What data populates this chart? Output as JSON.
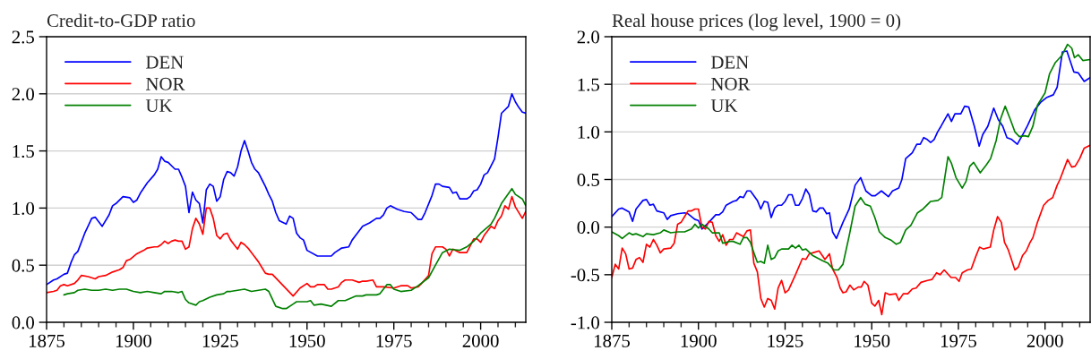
{
  "chart_data": [
    {
      "type": "line",
      "title": "Credit-to-GDP ratio",
      "xlim": [
        1875,
        2013
      ],
      "ylim": [
        0,
        2.5
      ],
      "xticks": [
        1875,
        {
          "value": 1880,
          "label": null
        },
        {
          "value": 1885,
          "label": null
        },
        {
          "value": 1890,
          "label": null
        },
        {
          "value": 1895,
          "label": null
        },
        1900,
        {
          "value": 1905,
          "label": null
        },
        {
          "value": 1910,
          "label": null
        },
        {
          "value": 1915,
          "label": null
        },
        {
          "value": 1920,
          "label": null
        },
        1925,
        {
          "value": 1930,
          "label": null
        },
        {
          "value": 1935,
          "label": null
        },
        {
          "value": 1940,
          "label": null
        },
        {
          "value": 1945,
          "label": null
        },
        1950,
        {
          "value": 1955,
          "label": null
        },
        {
          "value": 1960,
          "label": null
        },
        {
          "value": 1965,
          "label": null
        },
        {
          "value": 1970,
          "label": null
        },
        1975,
        {
          "value": 1980,
          "label": null
        },
        {
          "value": 1985,
          "label": null
        },
        {
          "value": 1990,
          "label": null
        },
        {
          "value": 1995,
          "label": null
        },
        2000,
        {
          "value": 2005,
          "label": null
        },
        {
          "value": 2010,
          "label": null
        }
      ],
      "yticks": [
        {
          "value": 0,
          "label": "0.0"
        },
        0.5,
        {
          "value": 1,
          "label": "1.0"
        },
        1.5,
        {
          "value": 2,
          "label": "2.0"
        },
        2.5
      ],
      "grid": "y",
      "legend": "top left",
      "series": [
        {
          "name": "DEN",
          "color": "#0000ff",
          "x": [
            1875,
            1877,
            1878,
            1880,
            1881,
            1882,
            1883,
            1884,
            1886,
            1888,
            1889,
            1891,
            1893,
            1894,
            1895,
            1897,
            1899,
            1900,
            1901,
            1902,
            1904,
            1906,
            1907,
            1908,
            1909,
            1910,
            1912,
            1913,
            1914,
            1915,
            1916,
            1917,
            1918,
            1919,
            1920,
            1921,
            1922,
            1923,
            1924,
            1925,
            1926,
            1927,
            1928,
            1929,
            1930,
            1931,
            1932,
            1933,
            1934,
            1935,
            1936,
            1937,
            1938,
            1939,
            1940,
            1941,
            1942,
            1944,
            1945,
            1946,
            1947,
            1948,
            1949,
            1950,
            1953,
            1955,
            1957,
            1958,
            1960,
            1962,
            1963,
            1964,
            1966,
            1968,
            1970,
            1971,
            1972,
            1973,
            1974,
            1976,
            1978,
            1980,
            1982,
            1983,
            1984,
            1986,
            1987,
            1988,
            1989,
            1991,
            1992,
            1993,
            1994,
            1996,
            1997,
            1998,
            1999,
            2000,
            2001,
            2002,
            2004,
            2005,
            2006,
            2008,
            2009,
            2010,
            2011,
            2012,
            2013
          ],
          "values": [
            0.33,
            0.37,
            0.38,
            0.42,
            0.43,
            0.52,
            0.59,
            0.62,
            0.78,
            0.91,
            0.92,
            0.84,
            0.94,
            1.02,
            1.04,
            1.1,
            1.09,
            1.05,
            1.07,
            1.13,
            1.22,
            1.29,
            1.34,
            1.45,
            1.41,
            1.4,
            1.34,
            1.34,
            1.27,
            1.19,
            0.96,
            1.14,
            1.07,
            1.04,
            0.87,
            1.16,
            1.21,
            1.19,
            1.06,
            1.1,
            1.25,
            1.32,
            1.31,
            1.28,
            1.36,
            1.5,
            1.59,
            1.5,
            1.4,
            1.34,
            1.31,
            1.25,
            1.19,
            1.12,
            1.06,
            0.96,
            0.89,
            0.86,
            0.93,
            0.91,
            0.78,
            0.74,
            0.72,
            0.63,
            0.58,
            0.58,
            0.58,
            0.61,
            0.65,
            0.66,
            0.72,
            0.76,
            0.84,
            0.87,
            0.91,
            0.91,
            0.94,
            1.0,
            1.02,
            0.99,
            0.97,
            0.96,
            0.9,
            0.9,
            0.96,
            1.11,
            1.21,
            1.21,
            1.19,
            1.18,
            1.13,
            1.14,
            1.08,
            1.08,
            1.1,
            1.15,
            1.16,
            1.21,
            1.29,
            1.31,
            1.43,
            1.62,
            1.83,
            1.89,
            2.0,
            1.93,
            1.88,
            1.84,
            1.83
          ]
        },
        {
          "name": "NOR",
          "color": "#ff0000",
          "x": [
            1875,
            1877,
            1878,
            1879,
            1880,
            1881,
            1883,
            1884,
            1885,
            1887,
            1889,
            1890,
            1892,
            1894,
            1896,
            1897,
            1898,
            1899,
            1901,
            1903,
            1904,
            1906,
            1907,
            1908,
            1909,
            1910,
            1911,
            1912,
            1913,
            1914,
            1915,
            1916,
            1917,
            1918,
            1919,
            1920,
            1921,
            1922,
            1923,
            1924,
            1925,
            1926,
            1927,
            1928,
            1929,
            1930,
            1931,
            1932,
            1933,
            1935,
            1936,
            1937,
            1938,
            1939,
            1940,
            1946,
            1948,
            1950,
            1951,
            1952,
            1953,
            1955,
            1956,
            1957,
            1959,
            1960,
            1961,
            1963,
            1965,
            1966,
            1967,
            1969,
            1970,
            1972,
            1975,
            1977,
            1979,
            1980,
            1982,
            1983,
            1985,
            1986,
            1987,
            1989,
            1990,
            1991,
            1992,
            1994,
            1996,
            1997,
            1998,
            1999,
            2000,
            2001,
            2003,
            2004,
            2005,
            2006,
            2007,
            2008,
            2009,
            2010,
            2012,
            2013
          ],
          "values": [
            0.26,
            0.27,
            0.28,
            0.32,
            0.33,
            0.32,
            0.34,
            0.37,
            0.41,
            0.4,
            0.38,
            0.4,
            0.41,
            0.44,
            0.46,
            0.48,
            0.54,
            0.55,
            0.6,
            0.63,
            0.65,
            0.66,
            0.66,
            0.68,
            0.71,
            0.69,
            0.71,
            0.72,
            0.71,
            0.71,
            0.64,
            0.66,
            0.82,
            0.91,
            0.86,
            0.77,
            1.0,
            1.0,
            0.91,
            0.76,
            0.73,
            0.77,
            0.78,
            0.72,
            0.68,
            0.64,
            0.7,
            0.68,
            0.65,
            0.57,
            0.53,
            0.48,
            0.43,
            0.42,
            0.42,
            0.23,
            0.3,
            0.34,
            0.31,
            0.31,
            0.33,
            0.33,
            0.29,
            0.29,
            0.31,
            0.35,
            0.37,
            0.37,
            0.35,
            0.36,
            0.36,
            0.37,
            0.31,
            0.31,
            0.3,
            0.32,
            0.32,
            0.3,
            0.31,
            0.34,
            0.41,
            0.6,
            0.66,
            0.66,
            0.64,
            0.58,
            0.64,
            0.61,
            0.61,
            0.67,
            0.73,
            0.73,
            0.7,
            0.76,
            0.84,
            0.82,
            0.89,
            0.93,
            1.02,
            0.99,
            1.1,
            1.01,
            0.91,
            0.97
          ]
        },
        {
          "name": "UK",
          "color": "#008000",
          "x": [
            1880,
            1881,
            1883,
            1884,
            1886,
            1888,
            1890,
            1892,
            1894,
            1896,
            1898,
            1900,
            1902,
            1904,
            1906,
            1908,
            1909,
            1911,
            1913,
            1914,
            1915,
            1916,
            1918,
            1919,
            1920,
            1922,
            1924,
            1926,
            1927,
            1928,
            1930,
            1932,
            1934,
            1936,
            1938,
            1939,
            1941,
            1943,
            1944,
            1946,
            1947,
            1950,
            1951,
            1952,
            1954,
            1957,
            1959,
            1961,
            1964,
            1966,
            1967,
            1970,
            1971,
            1973,
            1974,
            1975,
            1977,
            1980,
            1982,
            1985,
            1987,
            1989,
            1991,
            1994,
            1996,
            1998,
            2000,
            2003,
            2004,
            2006,
            2009,
            2010,
            2012,
            2013
          ],
          "values": [
            0.24,
            0.25,
            0.26,
            0.28,
            0.29,
            0.28,
            0.28,
            0.29,
            0.28,
            0.29,
            0.29,
            0.27,
            0.26,
            0.27,
            0.26,
            0.25,
            0.27,
            0.27,
            0.26,
            0.27,
            0.2,
            0.17,
            0.15,
            0.18,
            0.19,
            0.22,
            0.24,
            0.25,
            0.27,
            0.27,
            0.28,
            0.29,
            0.27,
            0.28,
            0.29,
            0.27,
            0.14,
            0.12,
            0.12,
            0.16,
            0.18,
            0.18,
            0.19,
            0.15,
            0.16,
            0.14,
            0.19,
            0.19,
            0.23,
            0.23,
            0.24,
            0.24,
            0.25,
            0.33,
            0.33,
            0.29,
            0.27,
            0.28,
            0.32,
            0.39,
            0.5,
            0.61,
            0.64,
            0.63,
            0.66,
            0.71,
            0.78,
            0.86,
            0.91,
            1.04,
            1.17,
            1.12,
            1.08,
            1.02
          ]
        }
      ]
    },
    {
      "type": "line",
      "title": "Real house prices (log level, 1900 = 0)",
      "xlim": [
        1875,
        2013
      ],
      "ylim": [
        -1,
        2
      ],
      "xticks": [
        1875,
        {
          "value": 1880,
          "label": null
        },
        {
          "value": 1885,
          "label": null
        },
        {
          "value": 1890,
          "label": null
        },
        {
          "value": 1895,
          "label": null
        },
        1900,
        {
          "value": 1905,
          "label": null
        },
        {
          "value": 1910,
          "label": null
        },
        {
          "value": 1915,
          "label": null
        },
        {
          "value": 1920,
          "label": null
        },
        1925,
        {
          "value": 1930,
          "label": null
        },
        {
          "value": 1935,
          "label": null
        },
        {
          "value": 1940,
          "label": null
        },
        {
          "value": 1945,
          "label": null
        },
        1950,
        {
          "value": 1955,
          "label": null
        },
        {
          "value": 1960,
          "label": null
        },
        {
          "value": 1965,
          "label": null
        },
        {
          "value": 1970,
          "label": null
        },
        1975,
        {
          "value": 1980,
          "label": null
        },
        {
          "value": 1985,
          "label": null
        },
        {
          "value": 1990,
          "label": null
        },
        {
          "value": 1995,
          "label": null
        },
        2000,
        {
          "value": 2005,
          "label": null
        },
        {
          "value": 2010,
          "label": null
        }
      ],
      "yticks": [
        {
          "value": -1,
          "label": "-1.0"
        },
        {
          "value": -0.5,
          "label": "-0.5"
        },
        {
          "value": 0,
          "label": "0.0"
        },
        0.5,
        {
          "value": 1,
          "label": "1.0"
        },
        1.5,
        {
          "value": 2,
          "label": "2.0"
        }
      ],
      "grid": "y",
      "legend": "top left",
      "series": [
        {
          "name": "DEN",
          "color": "#0000ff",
          "x": [
            1875,
            1877,
            1878,
            1880,
            1881,
            1882,
            1884,
            1885,
            1886,
            1887,
            1888,
            1890,
            1891,
            1892,
            1894,
            1896,
            1897,
            1899,
            1900,
            1901,
            1903,
            1905,
            1906,
            1907,
            1908,
            1910,
            1911,
            1912,
            1913,
            1914,
            1915,
            1917,
            1918,
            1919,
            1920,
            1921,
            1922,
            1923,
            1924,
            1925,
            1926,
            1927,
            1928,
            1929,
            1930,
            1931,
            1932,
            1933,
            1934,
            1935,
            1936,
            1937,
            1937.8,
            1938.7,
            1939.8,
            1941.7,
            1943.5,
            1945.2,
            1946.8,
            1948.3,
            1950,
            1951,
            1952.8,
            1954.8,
            1956,
            1957.8,
            1958.7,
            1959.8,
            1961.7,
            1963,
            1964,
            1965,
            1966,
            1967,
            1968,
            1969,
            1970,
            1972,
            1973,
            1974,
            1975.7,
            1976.8,
            1978,
            1979.6,
            1981,
            1982,
            1983.5,
            1985.2,
            1986.5,
            1987.8,
            1989,
            1990.4,
            1992,
            1994,
            1995,
            1997,
            1998.7,
            2000.4,
            2002.4,
            2003.5,
            2005,
            2006.3,
            2008.3,
            2009.6,
            2011.3,
            2013
          ],
          "values": [
            0.11,
            0.19,
            0.2,
            0.16,
            0.06,
            0.19,
            0.28,
            0.29,
            0.23,
            0.24,
            0.17,
            0.15,
            0.08,
            0.12,
            0.14,
            0.15,
            0.14,
            0.08,
            0.07,
            -0.02,
            0.05,
            0.13,
            0.13,
            0.16,
            0.23,
            0.27,
            0.28,
            0.32,
            0.31,
            0.38,
            0.38,
            0.28,
            0.19,
            0.27,
            0.26,
            0.1,
            0.2,
            0.23,
            0.23,
            0.27,
            0.34,
            0.34,
            0.23,
            0.23,
            0.3,
            0.4,
            0.34,
            0.17,
            0.16,
            0.2,
            0.2,
            0.14,
            0.15,
            -0.05,
            -0.12,
            0.05,
            0.19,
            0.44,
            0.52,
            0.38,
            0.33,
            0.33,
            0.38,
            0.32,
            0.38,
            0.41,
            0.5,
            0.72,
            0.78,
            0.87,
            0.87,
            0.94,
            0.92,
            0.89,
            0.92,
            1.0,
            1.06,
            1.19,
            1.11,
            1.19,
            1.19,
            1.27,
            1.26,
            1.06,
            0.85,
            0.97,
            1.06,
            1.25,
            1.13,
            1.06,
            0.94,
            0.92,
            0.87,
            1.0,
            1.07,
            1.23,
            1.31,
            1.36,
            1.39,
            1.47,
            1.84,
            1.85,
            1.63,
            1.62,
            1.53,
            1.57
          ]
        },
        {
          "name": "NOR",
          "color": "#ff0000",
          "x": [
            1875,
            1876,
            1877,
            1878,
            1879,
            1880,
            1881,
            1882,
            1883,
            1884,
            1885,
            1886,
            1887,
            1888,
            1889,
            1890,
            1892,
            1893,
            1894,
            1895,
            1896,
            1897,
            1898,
            1899,
            1900,
            1901,
            1902,
            1903,
            1904,
            1905,
            1906,
            1907,
            1908,
            1909,
            1910,
            1911,
            1912,
            1913,
            1914,
            1915,
            1916,
            1917,
            1918,
            1919,
            1920,
            1921,
            1922,
            1923,
            1924,
            1925,
            1926,
            1927,
            1928,
            1930,
            1931,
            1932,
            1933,
            1934.8,
            1936.5,
            1937.8,
            1938.7,
            1940,
            1940.9,
            1941.7,
            1942.6,
            1943.7,
            1944.8,
            1946.1,
            1947,
            1947.8,
            1948.9,
            1950,
            1950.9,
            1952,
            1952.9,
            1953.9,
            1955.2,
            1957,
            1957.8,
            1959.1,
            1960.4,
            1961.7,
            1962.8,
            1964.2,
            1966.1,
            1967.4,
            1968.7,
            1969.7,
            1970.9,
            1972.9,
            1974.2,
            1975.2,
            1976.1,
            1977.6,
            1978.7,
            1980,
            1981.1,
            1982.2,
            1984.2,
            1985.2,
            1986.3,
            1987.4,
            1988.3,
            1989.4,
            1991.3,
            1992.3,
            1993.5,
            1994.6,
            1995.7,
            1996.5,
            1997.8,
            1999.6,
            2000.9,
            2002.2,
            2003.5,
            2004.3,
            2006.5,
            2007.7,
            2008.7,
            2010,
            2011.3,
            2013
          ],
          "values": [
            -0.53,
            -0.39,
            -0.44,
            -0.22,
            -0.28,
            -0.44,
            -0.43,
            -0.34,
            -0.32,
            -0.37,
            -0.18,
            -0.21,
            -0.13,
            -0.19,
            -0.27,
            -0.23,
            -0.22,
            -0.17,
            0.03,
            0.05,
            0.11,
            0.17,
            0.17,
            0.19,
            0.19,
            0.0,
            -0.02,
            0.06,
            0.05,
            -0.09,
            -0.15,
            -0.08,
            -0.19,
            -0.13,
            -0.13,
            -0.06,
            -0.08,
            -0.1,
            -0.04,
            -0.03,
            -0.38,
            -0.47,
            -0.75,
            -0.84,
            -0.75,
            -0.77,
            -0.86,
            -0.64,
            -0.56,
            -0.69,
            -0.66,
            -0.58,
            -0.5,
            -0.33,
            -0.34,
            -0.28,
            -0.27,
            -0.25,
            -0.34,
            -0.28,
            -0.44,
            -0.53,
            -0.64,
            -0.69,
            -0.68,
            -0.61,
            -0.66,
            -0.63,
            -0.63,
            -0.57,
            -0.61,
            -0.8,
            -0.83,
            -0.77,
            -0.92,
            -0.69,
            -0.71,
            -0.7,
            -0.77,
            -0.7,
            -0.7,
            -0.65,
            -0.64,
            -0.58,
            -0.56,
            -0.55,
            -0.48,
            -0.5,
            -0.45,
            -0.53,
            -0.53,
            -0.57,
            -0.48,
            -0.45,
            -0.44,
            -0.31,
            -0.21,
            -0.23,
            -0.21,
            -0.03,
            0.11,
            0.05,
            -0.16,
            -0.24,
            -0.45,
            -0.42,
            -0.3,
            -0.25,
            -0.16,
            -0.11,
            0.05,
            0.23,
            0.28,
            0.31,
            0.44,
            0.5,
            0.71,
            0.63,
            0.64,
            0.72,
            0.83,
            0.86
          ]
        },
        {
          "name": "UK",
          "color": "#008000",
          "x": [
            1875,
            1877,
            1878,
            1880,
            1881,
            1882,
            1884,
            1885,
            1887,
            1889,
            1890,
            1892,
            1894,
            1896,
            1898,
            1899,
            1900,
            1901,
            1903,
            1904,
            1906,
            1907,
            1909,
            1910,
            1912,
            1913,
            1914,
            1915,
            1916,
            1917,
            1918,
            1919,
            1920,
            1921,
            1922,
            1923,
            1924,
            1926,
            1927,
            1928,
            1929,
            1930,
            1931,
            1933,
            1935.7,
            1937.4,
            1939.1,
            1940.4,
            1941.7,
            1943.5,
            1945.2,
            1946.8,
            1948.1,
            1949.6,
            1950.9,
            1952.2,
            1953.9,
            1955.7,
            1957.1,
            1958.3,
            1959.8,
            1961.3,
            1963.2,
            1964.8,
            1967,
            1969.1,
            1970.2,
            1972,
            1973,
            1974.3,
            1976.1,
            1977.2,
            1978.3,
            1979.4,
            1981.3,
            1983,
            1984.3,
            1985.9,
            1987.2,
            1988.5,
            1990,
            1991.3,
            1992.6,
            1994.1,
            1995.2,
            1996.5,
            1997.8,
            2000,
            2001.3,
            2003,
            2004.8,
            2006.5,
            2007.7,
            2008.5,
            2009.6,
            2010.9,
            2013
          ],
          "values": [
            -0.05,
            -0.09,
            -0.12,
            -0.06,
            -0.08,
            -0.07,
            -0.1,
            -0.07,
            -0.08,
            -0.06,
            -0.03,
            -0.06,
            -0.05,
            -0.05,
            -0.02,
            0.03,
            -0.01,
            0.03,
            -0.02,
            -0.06,
            -0.06,
            -0.17,
            -0.15,
            -0.15,
            -0.18,
            -0.11,
            -0.11,
            -0.16,
            -0.27,
            -0.37,
            -0.36,
            -0.38,
            -0.19,
            -0.34,
            -0.32,
            -0.25,
            -0.23,
            -0.23,
            -0.19,
            -0.22,
            -0.19,
            -0.24,
            -0.23,
            -0.3,
            -0.35,
            -0.38,
            -0.45,
            -0.45,
            -0.39,
            -0.09,
            0.22,
            0.31,
            0.24,
            0.22,
            0.1,
            -0.05,
            -0.11,
            -0.14,
            -0.18,
            -0.16,
            -0.03,
            0.02,
            0.15,
            0.19,
            0.27,
            0.28,
            0.31,
            0.74,
            0.67,
            0.52,
            0.41,
            0.48,
            0.64,
            0.68,
            0.57,
            0.65,
            0.72,
            0.91,
            1.14,
            1.27,
            1.13,
            1.0,
            0.95,
            0.96,
            0.95,
            1.06,
            1.28,
            1.41,
            1.61,
            1.73,
            1.8,
            1.92,
            1.88,
            1.78,
            1.81,
            1.75,
            1.76
          ]
        }
      ]
    }
  ]
}
